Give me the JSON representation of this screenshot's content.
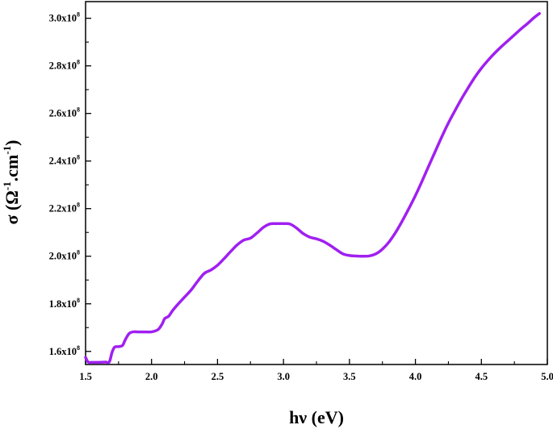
{
  "chart_data": {
    "type": "line",
    "xlabel": "hν (eV)",
    "ylabel": {
      "main": "σ (Ω",
      "sup1": "-1",
      "mid": ".cm",
      "sup2": "-1",
      "end": ")"
    },
    "xlim": [
      1.5,
      5.0
    ],
    "ylim": [
      1.545,
      3.07
    ],
    "x_ticks": [
      1.5,
      2.0,
      2.5,
      3.0,
      3.5,
      4.0,
      4.5,
      5.0
    ],
    "x_tick_labels": [
      "1.5",
      "2.0",
      "2.5",
      "3.0",
      "3.5",
      "4.0",
      "4.5",
      "5.0"
    ],
    "y_ticks": [
      1.6,
      1.8,
      2.0,
      2.2,
      2.4,
      2.6,
      2.8,
      3.0
    ],
    "y_tick_labels": [
      {
        "base": "1.6x10",
        "exp": "8"
      },
      {
        "base": "1.8x10",
        "exp": "8"
      },
      {
        "base": "2.0x10",
        "exp": "8"
      },
      {
        "base": "2.2x10",
        "exp": "8"
      },
      {
        "base": "2.4x10",
        "exp": "8"
      },
      {
        "base": "2.6x10",
        "exp": "8"
      },
      {
        "base": "2.8x10",
        "exp": "8"
      },
      {
        "base": "3.0x10",
        "exp": "8"
      }
    ],
    "y_unit_note": "values in units of 10^8",
    "grid": false,
    "line_color": "#a020f0",
    "series": [
      {
        "x": [
          1.5,
          1.52,
          1.55,
          1.6,
          1.65,
          1.68,
          1.7,
          1.72,
          1.75,
          1.78,
          1.8,
          1.83,
          1.86,
          1.9,
          1.95,
          2.0,
          2.05,
          2.08,
          2.1,
          2.13,
          2.16,
          2.2,
          2.25,
          2.3,
          2.35,
          2.4,
          2.45,
          2.5,
          2.55,
          2.6,
          2.65,
          2.7,
          2.75,
          2.8,
          2.85,
          2.9,
          2.95,
          3.0,
          3.05,
          3.1,
          3.15,
          3.2,
          3.25,
          3.3,
          3.35,
          3.4,
          3.45,
          3.5,
          3.55,
          3.6,
          3.65,
          3.7,
          3.75,
          3.8,
          3.85,
          3.9,
          3.95,
          4.0,
          4.05,
          4.1,
          4.15,
          4.2,
          4.25,
          4.3,
          4.35,
          4.4,
          4.45,
          4.5,
          4.55,
          4.6,
          4.65,
          4.7,
          4.75,
          4.8,
          4.85,
          4.9,
          4.94
        ],
        "y": [
          1.575,
          1.555,
          1.554,
          1.554,
          1.555,
          1.556,
          1.595,
          1.618,
          1.62,
          1.625,
          1.648,
          1.675,
          1.682,
          1.682,
          1.682,
          1.682,
          1.692,
          1.715,
          1.738,
          1.748,
          1.772,
          1.798,
          1.828,
          1.858,
          1.895,
          1.928,
          1.942,
          1.962,
          1.99,
          2.02,
          2.048,
          2.068,
          2.076,
          2.098,
          2.122,
          2.136,
          2.137,
          2.137,
          2.135,
          2.118,
          2.095,
          2.08,
          2.073,
          2.063,
          2.047,
          2.028,
          2.01,
          2.003,
          2.001,
          2.0,
          2.001,
          2.01,
          2.03,
          2.06,
          2.1,
          2.148,
          2.2,
          2.255,
          2.315,
          2.378,
          2.44,
          2.502,
          2.56,
          2.612,
          2.662,
          2.708,
          2.752,
          2.79,
          2.823,
          2.853,
          2.88,
          2.905,
          2.93,
          2.955,
          2.978,
          3.003,
          3.02
        ]
      }
    ]
  }
}
